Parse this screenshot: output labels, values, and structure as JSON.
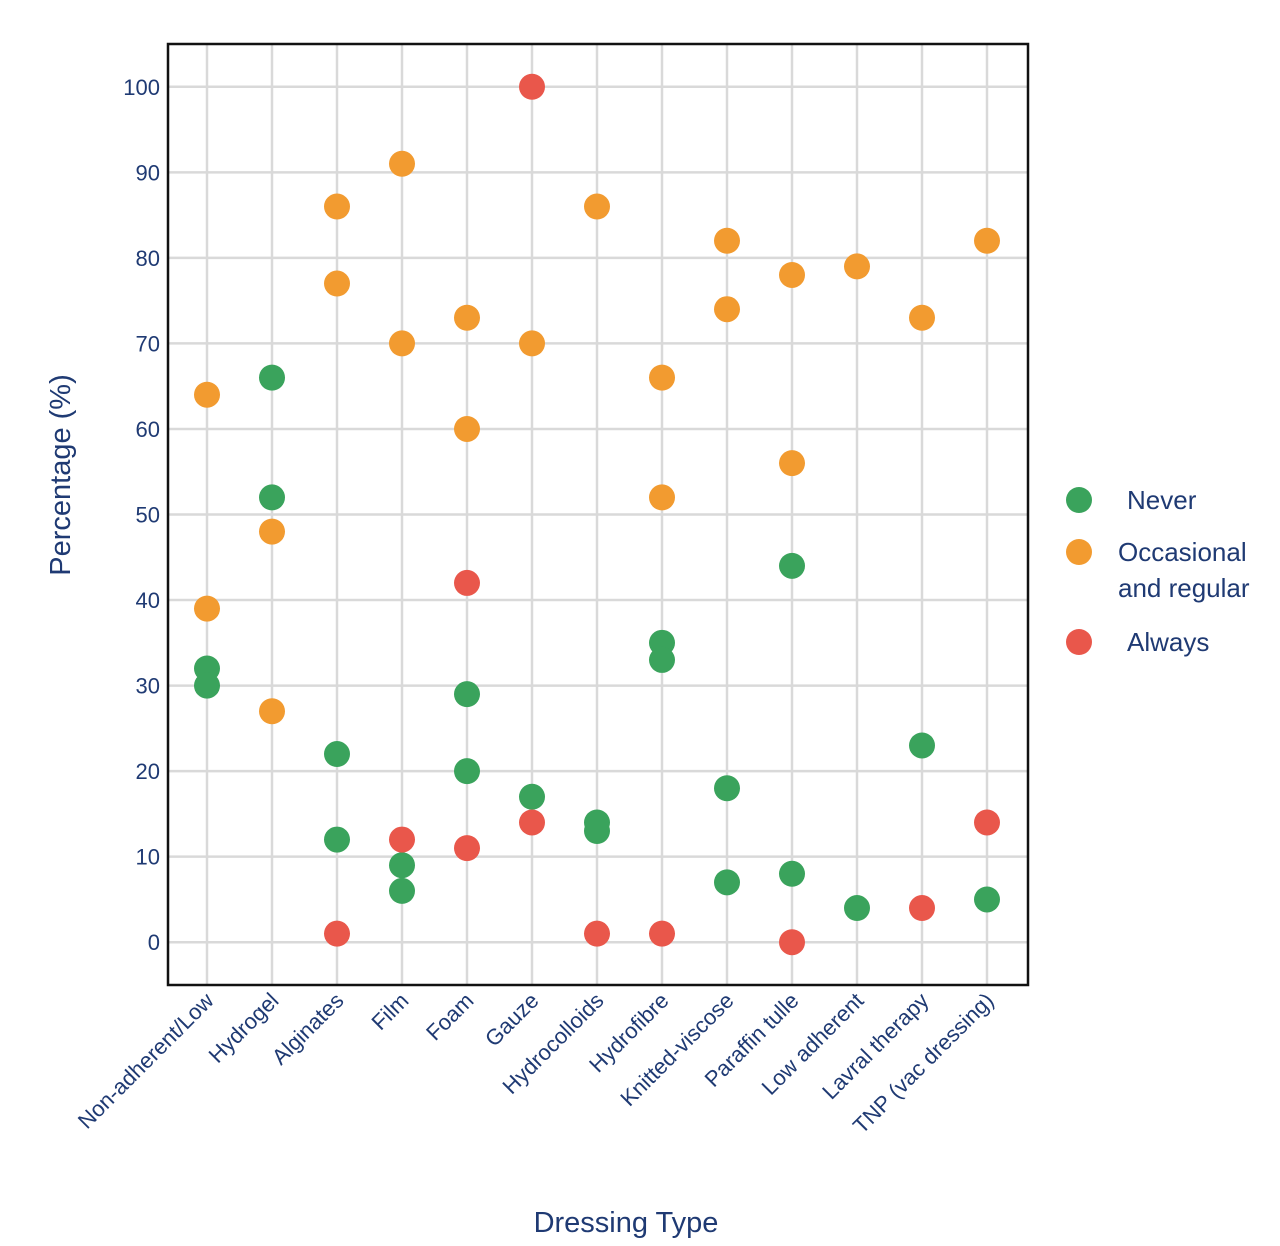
{
  "chart_data": {
    "type": "scatter",
    "title": "",
    "xlabel": "Dressing Type",
    "ylabel": "Percentage (%)",
    "ylim": [
      -5,
      105
    ],
    "yticks": [
      0,
      10,
      20,
      30,
      40,
      50,
      60,
      70,
      80,
      90,
      100
    ],
    "grid": true,
    "legend_position": "right",
    "categories": [
      "Non-adherent/Low",
      "Hydrogel",
      "Alginates",
      "Film",
      "Foam",
      "Gauze",
      "Hydrocolloids",
      "Hydrofibre",
      "Knitted-viscose",
      "Paraffin tulle",
      "Low adherent",
      "Lavral therapy",
      "TNP (vac dressing)"
    ],
    "series": [
      {
        "name": "Never",
        "color": "#3aa35c",
        "points": [
          {
            "x": "Non-adherent/Low",
            "y": 32
          },
          {
            "x": "Non-adherent/Low",
            "y": 30
          },
          {
            "x": "Hydrogel",
            "y": 66
          },
          {
            "x": "Hydrogel",
            "y": 52
          },
          {
            "x": "Alginates",
            "y": 22
          },
          {
            "x": "Alginates",
            "y": 12
          },
          {
            "x": "Film",
            "y": 9
          },
          {
            "x": "Film",
            "y": 6
          },
          {
            "x": "Foam",
            "y": 29
          },
          {
            "x": "Foam",
            "y": 20
          },
          {
            "x": "Gauze",
            "y": 17
          },
          {
            "x": "Hydrocolloids",
            "y": 14
          },
          {
            "x": "Hydrocolloids",
            "y": 13
          },
          {
            "x": "Hydrofibre",
            "y": 35
          },
          {
            "x": "Hydrofibre",
            "y": 33
          },
          {
            "x": "Knitted-viscose",
            "y": 18
          },
          {
            "x": "Knitted-viscose",
            "y": 7
          },
          {
            "x": "Paraffin tulle",
            "y": 44
          },
          {
            "x": "Paraffin tulle",
            "y": 8
          },
          {
            "x": "Low adherent",
            "y": 4
          },
          {
            "x": "Lavral therapy",
            "y": 23
          },
          {
            "x": "TNP (vac dressing)",
            "y": 5
          }
        ]
      },
      {
        "name": "Occasional and regular",
        "color": "#f29b30",
        "points": [
          {
            "x": "Non-adherent/Low",
            "y": 64
          },
          {
            "x": "Non-adherent/Low",
            "y": 39
          },
          {
            "x": "Hydrogel",
            "y": 48
          },
          {
            "x": "Hydrogel",
            "y": 27
          },
          {
            "x": "Alginates",
            "y": 86
          },
          {
            "x": "Alginates",
            "y": 77
          },
          {
            "x": "Film",
            "y": 91
          },
          {
            "x": "Film",
            "y": 70
          },
          {
            "x": "Foam",
            "y": 73
          },
          {
            "x": "Foam",
            "y": 60
          },
          {
            "x": "Gauze",
            "y": 70
          },
          {
            "x": "Hydrocolloids",
            "y": 86
          },
          {
            "x": "Hydrofibre",
            "y": 66
          },
          {
            "x": "Hydrofibre",
            "y": 52
          },
          {
            "x": "Knitted-viscose",
            "y": 82
          },
          {
            "x": "Knitted-viscose",
            "y": 74
          },
          {
            "x": "Paraffin tulle",
            "y": 78
          },
          {
            "x": "Paraffin tulle",
            "y": 56
          },
          {
            "x": "Low adherent",
            "y": 79
          },
          {
            "x": "Lavral therapy",
            "y": 73
          },
          {
            "x": "TNP (vac dressing)",
            "y": 82
          }
        ]
      },
      {
        "name": "Always",
        "color": "#e9574b",
        "points": [
          {
            "x": "Alginates",
            "y": 1
          },
          {
            "x": "Film",
            "y": 12
          },
          {
            "x": "Foam",
            "y": 42
          },
          {
            "x": "Foam",
            "y": 11
          },
          {
            "x": "Gauze",
            "y": 100
          },
          {
            "x": "Gauze",
            "y": 14
          },
          {
            "x": "Hydrocolloids",
            "y": 1
          },
          {
            "x": "Hydrofibre",
            "y": 1
          },
          {
            "x": "Paraffin tulle",
            "y": 0
          },
          {
            "x": "Lavral therapy",
            "y": 4
          },
          {
            "x": "TNP (vac dressing)",
            "y": 14
          }
        ]
      }
    ],
    "legend": [
      {
        "label_lines": [
          "Never"
        ],
        "color": "#3aa35c"
      },
      {
        "label_lines": [
          "Occasional",
          "and regular"
        ],
        "color": "#f29b30"
      },
      {
        "label_lines": [
          "Always"
        ],
        "color": "#e9574b"
      }
    ]
  }
}
